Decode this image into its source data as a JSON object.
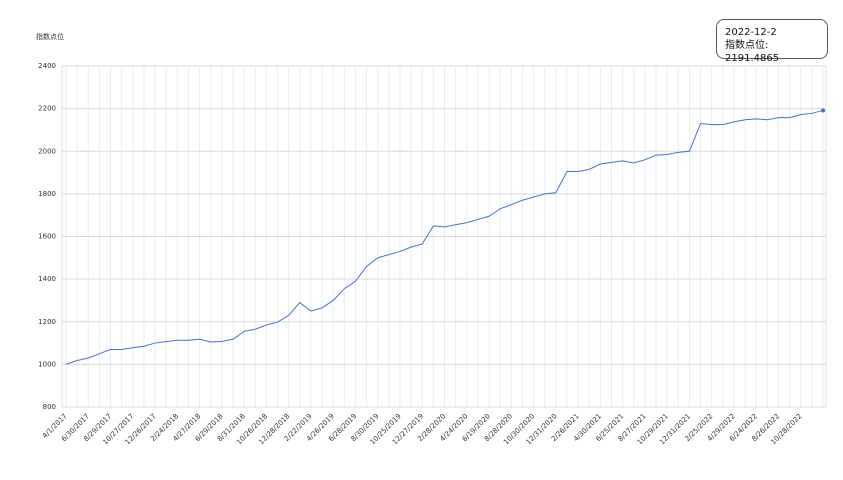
{
  "chart_data": {
    "type": "line",
    "y_label": "指数点位",
    "categories": [
      "4/1/2017",
      null,
      "6/30/2017",
      null,
      "8/29/2017",
      null,
      "10/27/2017",
      null,
      "12/26/2017",
      null,
      "2/24/2018",
      null,
      "4/27/2018",
      null,
      "6/29/2018",
      null,
      "8/31/2018",
      null,
      "10/26/2018",
      null,
      "12/28/2018",
      null,
      "2/22/2019",
      null,
      "4/26/2019",
      null,
      "6/28/2019",
      null,
      "8/30/2019",
      null,
      "10/25/2019",
      null,
      "12/27/2019",
      null,
      "2/28/2020",
      null,
      "4/24/2020",
      null,
      "6/19/2020",
      null,
      "8/28/2020",
      null,
      "10/30/2020",
      null,
      "12/31/2020",
      null,
      "2/26/2021",
      null,
      "4/30/2021",
      null,
      "6/25/2021",
      null,
      "8/27/2021",
      null,
      "10/29/2021",
      null,
      "12/31/2021",
      null,
      "2/25/2022",
      null,
      "4/29/2022",
      null,
      "6/24/2022",
      null,
      "8/26/2022",
      null,
      "10/28/2022",
      null,
      null
    ],
    "series": [
      {
        "color": "#4472c4",
        "values": [
          1000,
          1018,
          1030,
          1050,
          1070,
          1070,
          1078,
          1085,
          1100,
          1107,
          1113,
          1113,
          1118,
          1105,
          1108,
          1118,
          1155,
          1165,
          1185,
          1198,
          1230,
          1290,
          1250,
          1265,
          1300,
          1355,
          1390,
          1460,
          1500,
          1515,
          1530,
          1550,
          1565,
          1650,
          1645,
          1655,
          1665,
          1680,
          1695,
          1730,
          1750,
          1770,
          1785,
          1800,
          1805,
          1905,
          1905,
          1915,
          1940,
          1948,
          1955,
          1945,
          1960,
          1982,
          1985,
          1995,
          2000,
          2130,
          2125,
          2125,
          2138,
          2148,
          2152,
          2148,
          2158,
          2158,
          2172,
          2178,
          2191.4865
        ]
      }
    ],
    "ylim": [
      800,
      2400
    ],
    "yticks": [
      800,
      1000,
      1200,
      1400,
      1600,
      1800,
      2000,
      2200,
      2400
    ],
    "grid": true,
    "tooltip": {
      "date": "2022-12-2",
      "text": "指数点位: 2191.4865"
    }
  }
}
